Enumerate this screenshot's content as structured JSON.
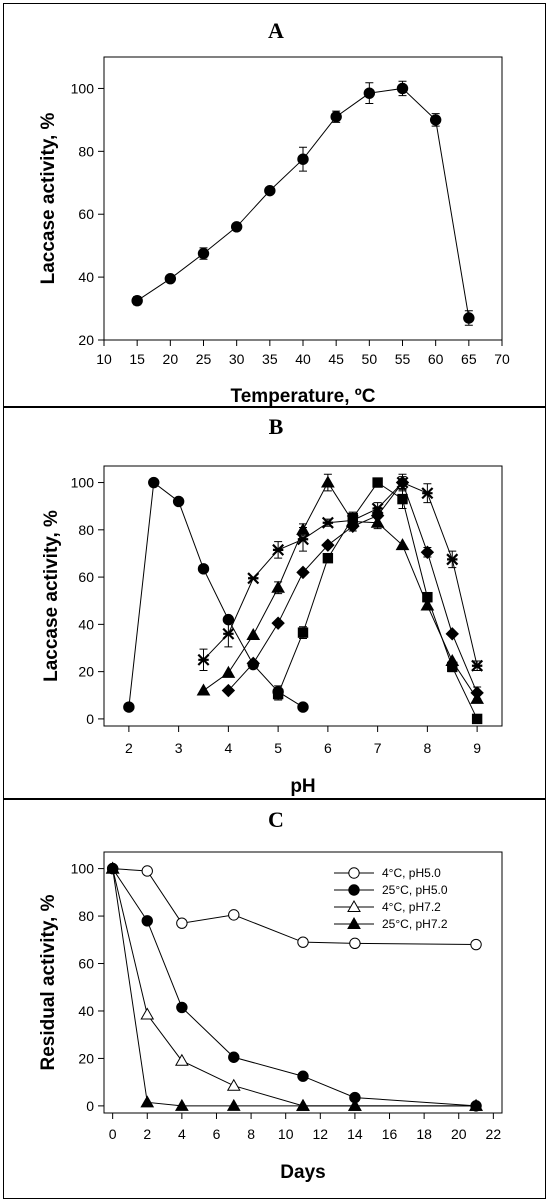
{
  "chart_data": [
    {
      "type": "line",
      "panel_label": "A",
      "xlabel": "Temperature, ºC",
      "ylabel": "Laccase activity, %",
      "xlim": [
        10,
        70
      ],
      "ylim": [
        20,
        110
      ],
      "xticks": [
        10,
        15,
        20,
        25,
        30,
        35,
        40,
        45,
        50,
        55,
        60,
        65,
        70
      ],
      "yticks": [
        20,
        40,
        60,
        80,
        100
      ],
      "grid": false,
      "series": [
        {
          "marker": "circle-filled",
          "x": [
            15,
            20,
            25,
            30,
            35,
            40,
            45,
            50,
            55,
            60,
            65
          ],
          "y": [
            32.5,
            39.5,
            47.5,
            56,
            67.5,
            77.5,
            91,
            98.5,
            100,
            90,
            27
          ],
          "err": [
            1.3,
            1.0,
            1.8,
            1.0,
            1.0,
            3.8,
            1.8,
            3.3,
            2.3,
            2.0,
            2.3
          ]
        }
      ]
    },
    {
      "type": "line",
      "panel_label": "B",
      "xlabel": "pH",
      "ylabel": "Laccase activity, %",
      "xlim": [
        1.5,
        9.5
      ],
      "ylim": [
        -3,
        107
      ],
      "xticks": [
        2,
        3,
        4,
        5,
        6,
        7,
        8,
        9
      ],
      "yticks": [
        0,
        20,
        40,
        60,
        80,
        100
      ],
      "grid": false,
      "series": [
        {
          "marker": "circle-filled",
          "x": [
            2,
            2.5,
            3,
            3.5,
            4,
            4.5,
            5,
            5.5
          ],
          "y": [
            5,
            100,
            92,
            63.5,
            42,
            23,
            11.5,
            5
          ],
          "err": [
            0,
            0,
            0,
            0,
            0,
            0,
            2.5,
            0
          ]
        },
        {
          "marker": "star",
          "x": [
            3.5,
            4,
            4.5,
            5,
            5.5,
            6,
            6.5,
            7,
            7.5,
            8,
            8.5,
            9
          ],
          "y": [
            25,
            36,
            59.5,
            71.5,
            76,
            83,
            84,
            89,
            100,
            95.5,
            67.5,
            22.5
          ],
          "err": [
            4.5,
            5.5,
            0,
            3.5,
            5.0,
            1.5,
            2.5,
            2.5,
            3.5,
            4.0,
            3.5,
            2.0
          ]
        },
        {
          "marker": "triangle-filled",
          "x": [
            3.5,
            4,
            4.5,
            5,
            5.5,
            6,
            6.5,
            7,
            7.5,
            8,
            8.5,
            9
          ],
          "y": [
            12,
            19.5,
            35.5,
            55.5,
            80,
            100,
            83.5,
            83,
            73.5,
            48,
            24.5,
            8.5
          ],
          "err": [
            0,
            0,
            0,
            2.5,
            2.5,
            3.5,
            2.5,
            2.5,
            0,
            0,
            0,
            0
          ]
        },
        {
          "marker": "diamond-filled",
          "x": [
            4,
            4.5,
            5,
            5.5,
            6,
            6.5,
            7,
            7.5,
            8,
            8.5,
            9
          ],
          "y": [
            12,
            23.5,
            40.5,
            62,
            73.5,
            81.5,
            86,
            100,
            70.5,
            36,
            11
          ],
          "err": [
            0,
            0,
            0,
            0,
            0,
            2.0,
            3.5,
            2.5,
            2.0,
            0,
            2.5
          ]
        },
        {
          "marker": "square-filled",
          "x": [
            5,
            5.5,
            6,
            6.5,
            7,
            7.5,
            8,
            8.5,
            9
          ],
          "y": [
            10.5,
            36.5,
            68,
            85,
            100,
            93,
            51.5,
            22,
            0
          ],
          "err": [
            2.5,
            2.5,
            0,
            2.5,
            0,
            4.0,
            2.0,
            2.0,
            0
          ]
        }
      ]
    },
    {
      "type": "line",
      "panel_label": "C",
      "xlabel": "Days",
      "ylabel": "Residual activity, %",
      "xlim": [
        -0.5,
        22.5
      ],
      "ylim": [
        -3,
        107
      ],
      "xticks": [
        0,
        2,
        4,
        6,
        8,
        10,
        12,
        14,
        16,
        18,
        20,
        22
      ],
      "yticks": [
        0,
        20,
        40,
        60,
        80,
        100
      ],
      "grid": false,
      "legend_position": "top-right",
      "series": [
        {
          "name": "4°C, pH5.0",
          "marker": "circle-open",
          "x": [
            0,
            2,
            4,
            7,
            11,
            14,
            21
          ],
          "y": [
            100,
            99,
            77,
            80.5,
            69,
            68.5,
            68
          ]
        },
        {
          "name": "25°C, pH5.0",
          "marker": "circle-filled",
          "x": [
            0,
            2,
            4,
            7,
            11,
            14,
            21
          ],
          "y": [
            100,
            78,
            41.5,
            20.5,
            12.5,
            3.5,
            0
          ]
        },
        {
          "name": "4°C, pH7.2",
          "marker": "triangle-open",
          "x": [
            0,
            2,
            4,
            7,
            11,
            14,
            21
          ],
          "y": [
            100,
            38.5,
            19,
            8.5,
            0,
            0,
            0
          ]
        },
        {
          "name": "25°C, pH7.2",
          "marker": "triangle-filled",
          "x": [
            0,
            2,
            4,
            7,
            11,
            14,
            21
          ],
          "y": [
            100,
            1.5,
            0,
            0,
            0,
            0,
            0
          ]
        }
      ]
    }
  ]
}
